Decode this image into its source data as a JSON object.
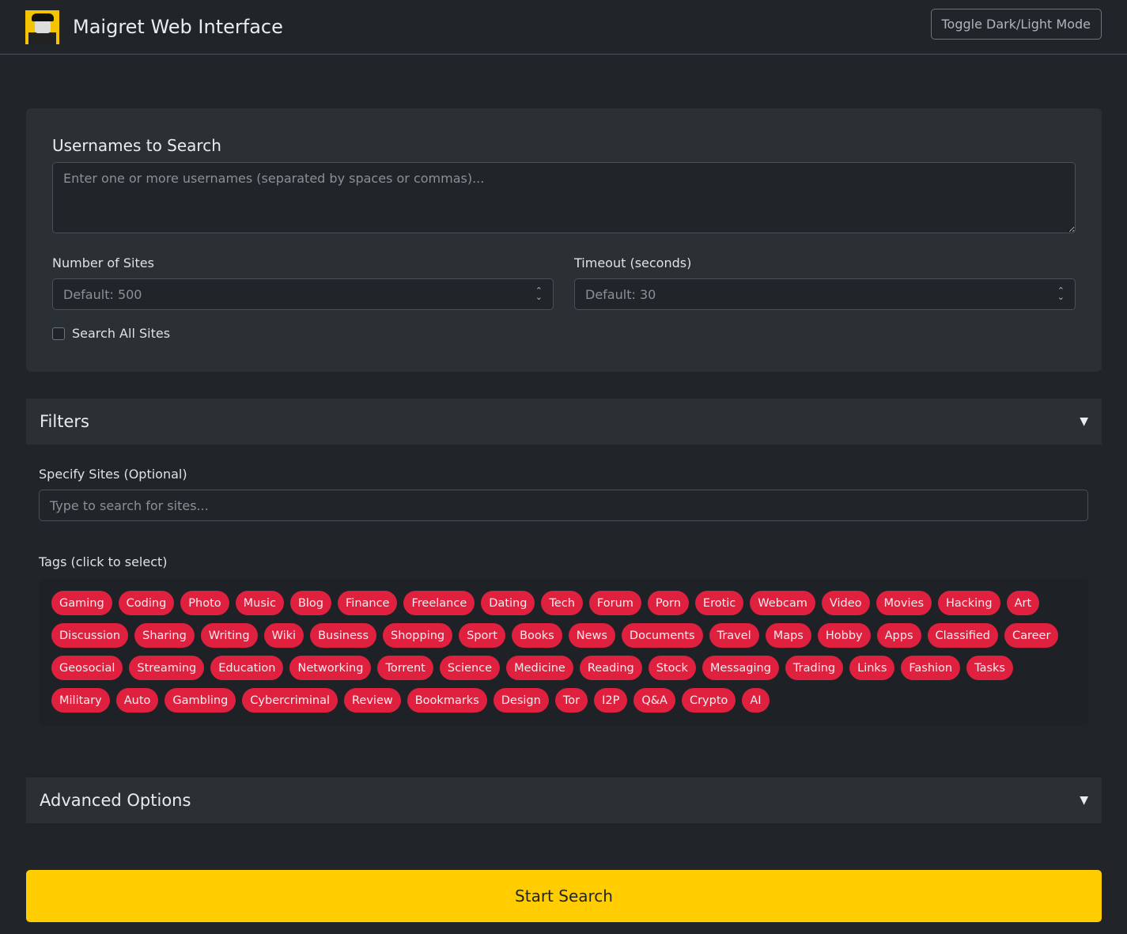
{
  "header": {
    "title": "Maigret Web Interface",
    "toggle_label": "Toggle Dark/Light Mode"
  },
  "form": {
    "usernames_label": "Usernames to Search",
    "usernames_placeholder": "Enter one or more usernames (separated by spaces or commas)...",
    "sites_label": "Number of Sites",
    "sites_placeholder": "Default: 500",
    "timeout_label": "Timeout (seconds)",
    "timeout_placeholder": "Default: 30",
    "all_sites_label": "Search All Sites",
    "all_sites_checked": false
  },
  "filters": {
    "title": "Filters",
    "specify_label": "Specify Sites (Optional)",
    "specify_placeholder": "Type to search for sites...",
    "tags_label": "Tags (click to select)",
    "tags": [
      "Gaming",
      "Coding",
      "Photo",
      "Music",
      "Blog",
      "Finance",
      "Freelance",
      "Dating",
      "Tech",
      "Forum",
      "Porn",
      "Erotic",
      "Webcam",
      "Video",
      "Movies",
      "Hacking",
      "Art",
      "Discussion",
      "Sharing",
      "Writing",
      "Wiki",
      "Business",
      "Shopping",
      "Sport",
      "Books",
      "News",
      "Documents",
      "Travel",
      "Maps",
      "Hobby",
      "Apps",
      "Classified",
      "Career",
      "Geosocial",
      "Streaming",
      "Education",
      "Networking",
      "Torrent",
      "Science",
      "Medicine",
      "Reading",
      "Stock",
      "Messaging",
      "Trading",
      "Links",
      "Fashion",
      "Tasks",
      "Military",
      "Auto",
      "Gambling",
      "Cybercriminal",
      "Review",
      "Bookmarks",
      "Design",
      "Tor",
      "I2P",
      "Q&A",
      "Crypto",
      "AI"
    ]
  },
  "advanced": {
    "title": "Advanced Options"
  },
  "start_label": "Start Search",
  "colors": {
    "tag": "#e0203f",
    "start": "#ffcd00",
    "background": "#212529"
  }
}
